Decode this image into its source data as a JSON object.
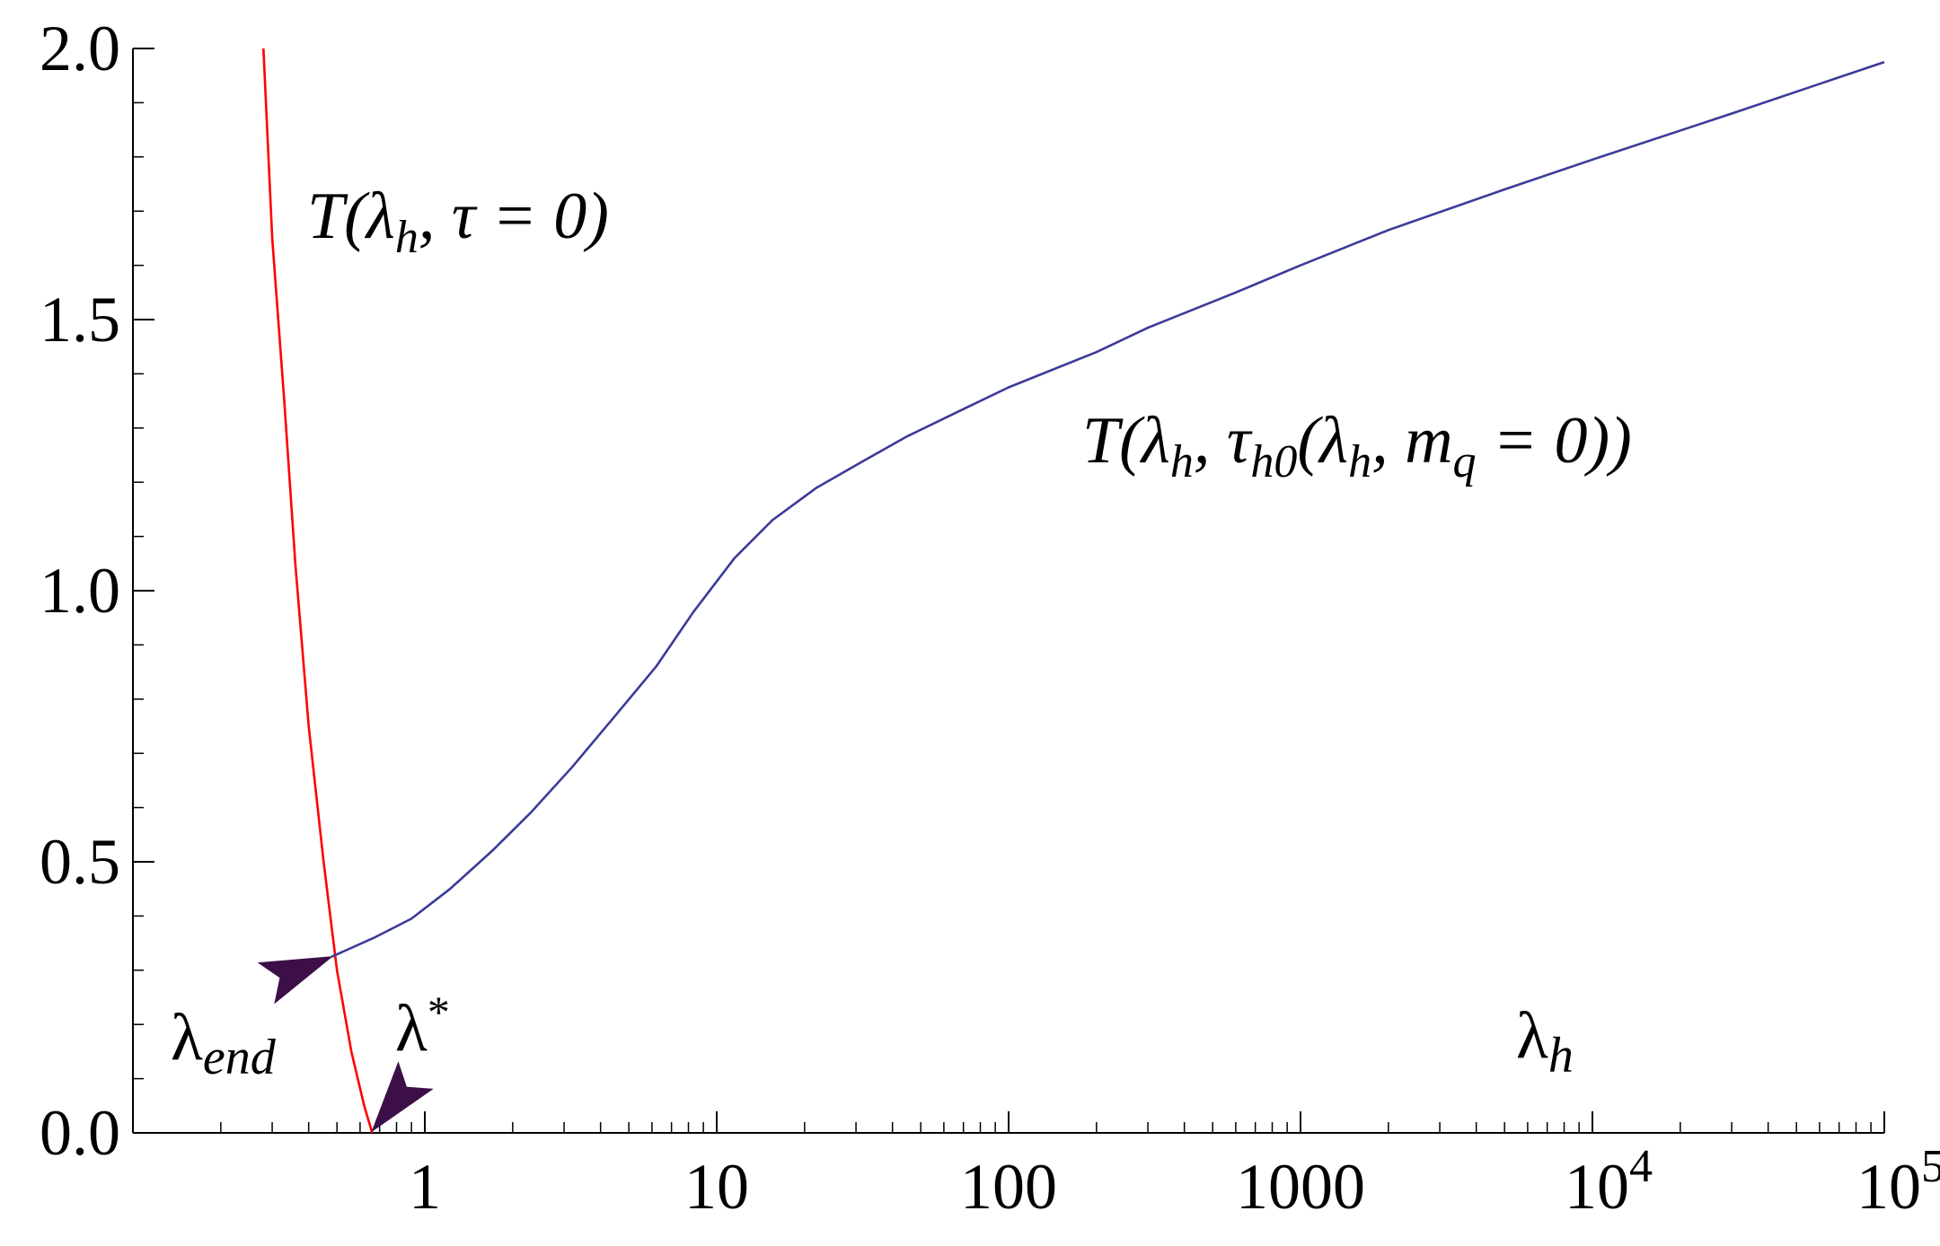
{
  "chart_data": {
    "type": "line",
    "title": "",
    "xscale": "log",
    "xlim": [
      0.1,
      100000
    ],
    "ylim": [
      0,
      2.0
    ],
    "xlabel": "λh",
    "grid": false,
    "y_ticks": [
      {
        "v": 0,
        "label": "0.0"
      },
      {
        "v": 0.5,
        "label": "0.5"
      },
      {
        "v": 1.0,
        "label": "1.0"
      },
      {
        "v": 1.5,
        "label": "1.5"
      },
      {
        "v": 2.0,
        "label": "2.0"
      }
    ],
    "x_ticks": [
      {
        "v": 1,
        "label": "1"
      },
      {
        "v": 10,
        "label": "10"
      },
      {
        "v": 100,
        "label": "100"
      },
      {
        "v": 1000,
        "label": "1000"
      },
      {
        "v": 10000,
        "label": "10",
        "sup": "4"
      },
      {
        "v": 100000,
        "label": "10",
        "sup": "5"
      }
    ],
    "series": [
      {
        "name": "T(λh, τ = 0)",
        "color": "#ff0000",
        "points": [
          [
            0.28,
            2.0
          ],
          [
            0.3,
            1.65
          ],
          [
            0.33,
            1.35
          ],
          [
            0.36,
            1.05
          ],
          [
            0.4,
            0.75
          ],
          [
            0.45,
            0.5
          ],
          [
            0.5,
            0.3
          ],
          [
            0.56,
            0.15
          ],
          [
            0.62,
            0.05
          ],
          [
            0.66,
            0.0
          ]
        ]
      },
      {
        "name": "T(λh, τh0(λh, mq = 0))",
        "color": "#3b3b99",
        "points": [
          [
            0.48,
            0.325
          ],
          [
            0.67,
            0.36
          ],
          [
            0.9,
            0.395
          ],
          [
            1.22,
            0.45
          ],
          [
            1.7,
            0.52
          ],
          [
            2.3,
            0.59
          ],
          [
            3.2,
            0.675
          ],
          [
            4.5,
            0.77
          ],
          [
            6.2,
            0.86
          ],
          [
            8.3,
            0.96
          ],
          [
            11.5,
            1.06
          ],
          [
            15.5,
            1.13
          ],
          [
            22,
            1.19
          ],
          [
            32,
            1.24
          ],
          [
            45,
            1.285
          ],
          [
            70,
            1.335
          ],
          [
            100,
            1.375
          ],
          [
            200,
            1.44
          ],
          [
            300,
            1.485
          ],
          [
            600,
            1.55
          ],
          [
            1000,
            1.6
          ],
          [
            2000,
            1.665
          ],
          [
            5000,
            1.74
          ],
          [
            10000,
            1.795
          ],
          [
            30000,
            1.88
          ],
          [
            100000,
            1.975
          ]
        ]
      }
    ],
    "labels": {
      "series1": {
        "base": "T(λ",
        "sub": "h",
        "rest": ", τ = 0)"
      },
      "series2": {
        "p1": "T(λ",
        "s1": "h",
        "p2": ", τ",
        "s2": "h0",
        "p3": "(λ",
        "s3": "h",
        "p4": ", m",
        "s4": "q",
        "p5": " = 0))"
      },
      "lambda_end": {
        "base": "λ",
        "sub": "end"
      },
      "lambda_star": {
        "base": "λ",
        "sup": "*"
      },
      "axis": {
        "base": "λ",
        "sub": "h"
      }
    },
    "arrow_color": "#3d0f48"
  }
}
